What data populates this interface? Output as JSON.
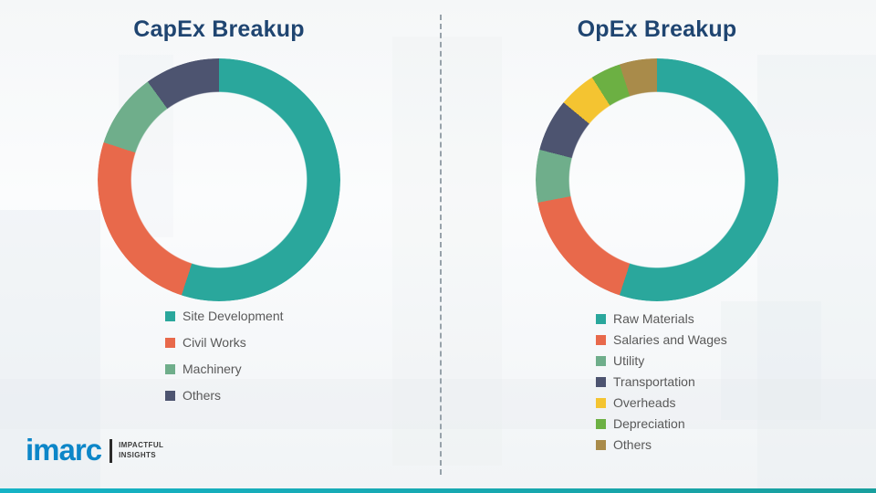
{
  "chart_data": [
    {
      "type": "pie",
      "subtype": "donut",
      "title": "CapEx Breakup",
      "labels": [
        "Site Development",
        "Civil Works",
        "Machinery",
        "Others"
      ],
      "values": [
        55,
        25,
        10,
        10
      ],
      "colors": [
        "#2aa79c",
        "#e8694b",
        "#6fae8b",
        "#4d5470"
      ],
      "legend_position": "below-left"
    },
    {
      "type": "pie",
      "subtype": "donut",
      "title": "OpEx Breakup",
      "labels": [
        "Raw Materials",
        "Salaries and Wages",
        "Utility",
        "Transportation",
        "Overheads",
        "Depreciation",
        "Others"
      ],
      "values": [
        55,
        17,
        7,
        7,
        5,
        4,
        5
      ],
      "colors": [
        "#2aa79c",
        "#e8694b",
        "#6fae8b",
        "#4d5470",
        "#f4c431",
        "#6cb043",
        "#a98b4a"
      ],
      "legend_position": "below-left"
    }
  ],
  "logo": {
    "brand": "imarc",
    "brand_color": "#0c86c8",
    "tagline_line1": "IMPACTFUL",
    "tagline_line2": "INSIGHTS"
  }
}
